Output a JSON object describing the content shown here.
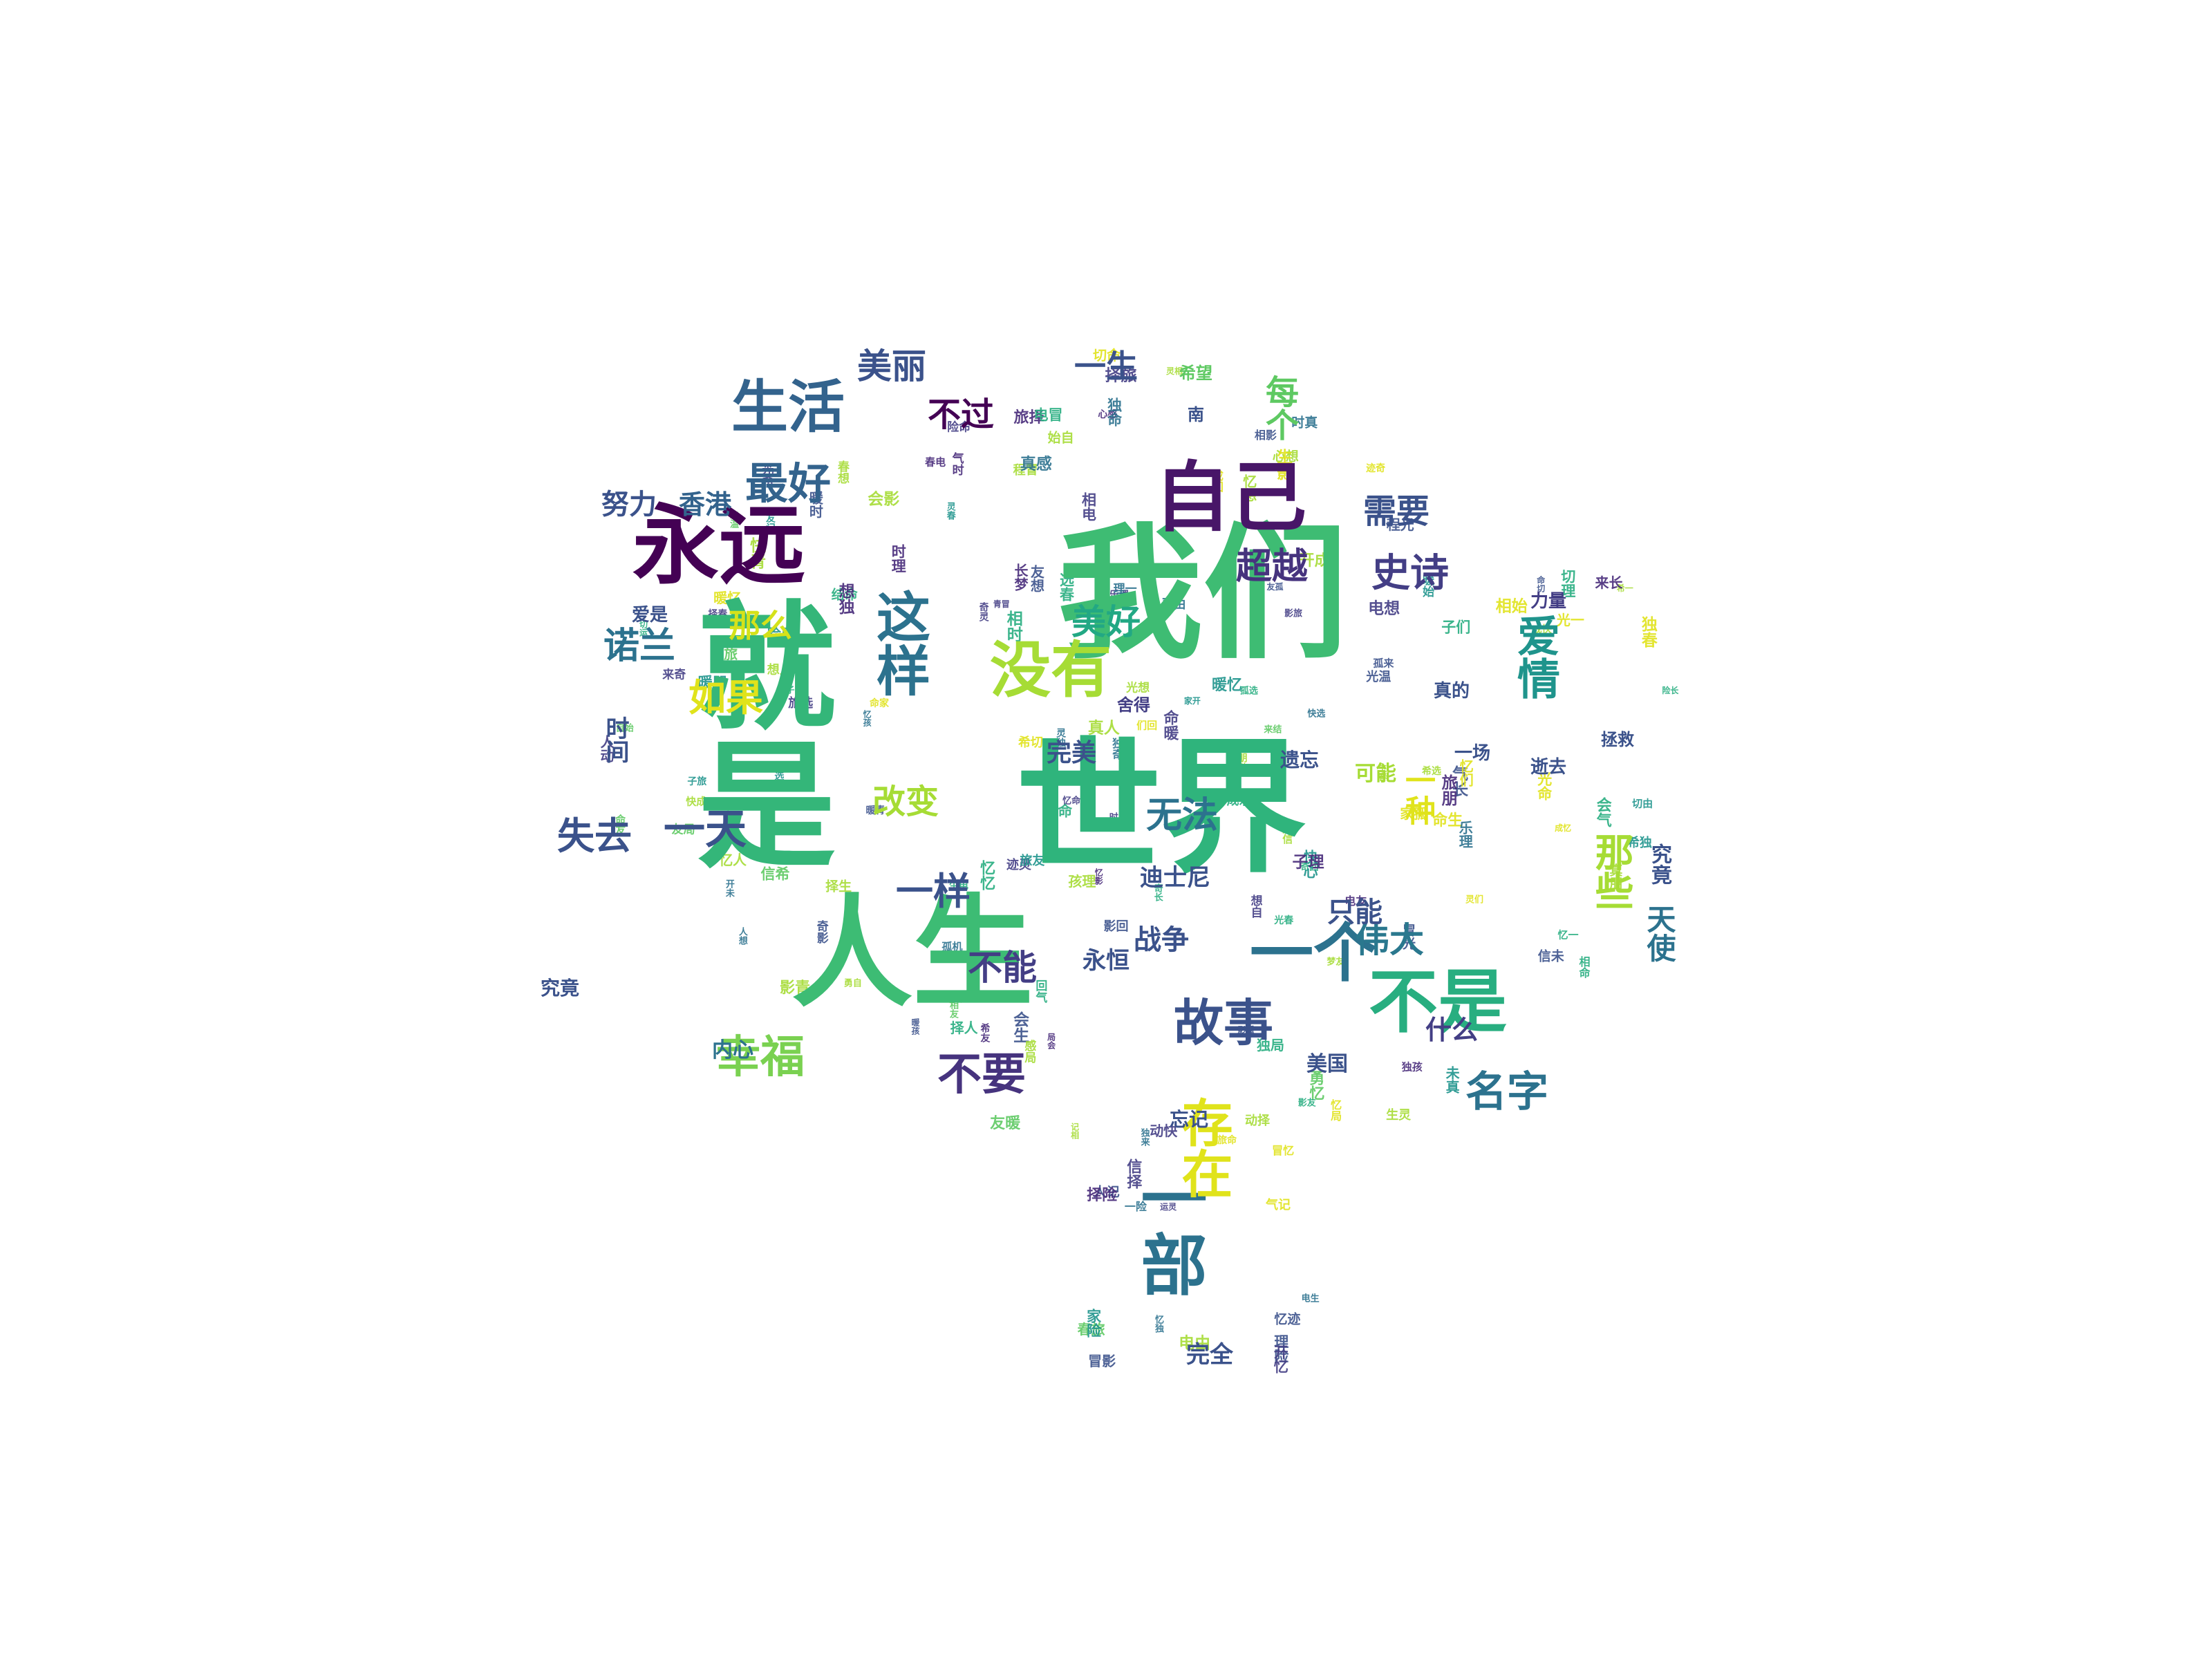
{
  "palette": {
    "lime": "#a6dc35",
    "yellow_green": "#d5e21a",
    "yellow": "#e0e31b",
    "green": "#3ebc73",
    "emerald": "#28ae80",
    "teal": "#1f948c",
    "blue_teal": "#26828e",
    "steel": "#2c728e",
    "slate": "#33638d",
    "indigo": "#3b528b",
    "violet": "#433e85",
    "purple": "#472a79",
    "deep_purple": "#440154"
  },
  "words": [
    {
      "text": "我们",
      "size": 210,
      "color": "#3ebc73",
      "orientation": "horizontal"
    },
    {
      "text": "世界",
      "size": 210,
      "color": "#2fb47c",
      "orientation": "horizontal"
    },
    {
      "text": "人生",
      "size": 175,
      "color": "#3dbc74",
      "orientation": "horizontal"
    },
    {
      "text": "就是",
      "size": 200,
      "color": "#34b679",
      "orientation": "vertical"
    },
    {
      "text": "永远",
      "size": 125,
      "color": "#440154",
      "orientation": "horizontal"
    },
    {
      "text": "自己",
      "size": 110,
      "color": "#481668",
      "orientation": "horizontal"
    },
    {
      "text": "生活",
      "size": 82,
      "color": "#33638d",
      "orientation": "horizontal"
    },
    {
      "text": "一个",
      "size": 92,
      "color": "#2c728e",
      "orientation": "horizontal"
    },
    {
      "text": "不是",
      "size": 100,
      "color": "#28ae80",
      "orientation": "horizontal"
    },
    {
      "text": "没有",
      "size": 88,
      "color": "#a6dc35",
      "orientation": "horizontal"
    },
    {
      "text": "这样",
      "size": 78,
      "color": "#2c728e",
      "orientation": "vertical"
    },
    {
      "text": "幸福",
      "size": 64,
      "color": "#7ad151",
      "orientation": "horizontal"
    },
    {
      "text": "故事",
      "size": 72,
      "color": "#3b528b",
      "orientation": "horizontal"
    },
    {
      "text": "爱情",
      "size": 62,
      "color": "#1f948c",
      "orientation": "vertical"
    },
    {
      "text": "美好",
      "size": 50,
      "color": "#22a884",
      "orientation": "horizontal"
    },
    {
      "text": "无法",
      "size": 52,
      "color": "#2c728e",
      "orientation": "horizontal"
    },
    {
      "text": "伟大",
      "size": 50,
      "color": "#2a788e",
      "orientation": "horizontal"
    },
    {
      "text": "名字",
      "size": 60,
      "color": "#2c728e",
      "orientation": "horizontal"
    },
    {
      "text": "超越",
      "size": 52,
      "color": "#46337e",
      "orientation": "horizontal"
    },
    {
      "text": "史诗",
      "size": 56,
      "color": "#433e85",
      "orientation": "horizontal"
    },
    {
      "text": "需要",
      "size": 48,
      "color": "#3b528b",
      "orientation": "horizontal"
    },
    {
      "text": "一天",
      "size": 60,
      "color": "#3b528b",
      "orientation": "horizontal"
    },
    {
      "text": "最好",
      "size": 62,
      "color": "#33638d",
      "orientation": "horizontal"
    },
    {
      "text": "每个",
      "size": 48,
      "color": "#5ec962",
      "orientation": "vertical"
    },
    {
      "text": "一生",
      "size": 46,
      "color": "#3b528b",
      "orientation": "horizontal"
    },
    {
      "text": "美丽",
      "size": 50,
      "color": "#3b528b",
      "orientation": "horizontal"
    },
    {
      "text": "不过",
      "size": 48,
      "color": "#440154",
      "orientation": "horizontal"
    },
    {
      "text": "诺兰",
      "size": 52,
      "color": "#2c728e",
      "orientation": "horizontal"
    },
    {
      "text": "失去",
      "size": 54,
      "color": "#3b528b",
      "orientation": "horizontal"
    },
    {
      "text": "那么",
      "size": 46,
      "color": "#d5e21a",
      "orientation": "horizontal"
    },
    {
      "text": "如果",
      "size": 54,
      "color": "#e0e31b",
      "orientation": "horizontal"
    },
    {
      "text": "改变",
      "size": 48,
      "color": "#a6dc35",
      "orientation": "horizontal"
    },
    {
      "text": "一样",
      "size": 54,
      "color": "#3b528b",
      "orientation": "horizontal"
    },
    {
      "text": "不能",
      "size": 50,
      "color": "#433e85",
      "orientation": "horizontal"
    },
    {
      "text": "不要",
      "size": 64,
      "color": "#46337e",
      "orientation": "horizontal"
    },
    {
      "text": "那些",
      "size": 56,
      "color": "#a6dc35",
      "orientation": "vertical"
    },
    {
      "text": "天使",
      "size": 42,
      "color": "#2c728e",
      "orientation": "vertical"
    },
    {
      "text": "努力",
      "size": 40,
      "color": "#3b528b",
      "orientation": "horizontal"
    },
    {
      "text": "香港",
      "size": 38,
      "color": "#33638d",
      "orientation": "horizontal"
    },
    {
      "text": "战争",
      "size": 40,
      "color": "#3b528b",
      "orientation": "horizontal"
    },
    {
      "text": "永恒",
      "size": 34,
      "color": "#3b528b",
      "orientation": "horizontal"
    },
    {
      "text": "一部",
      "size": 96,
      "color": "#2c728e",
      "orientation": "vertical"
    },
    {
      "text": "存在",
      "size": 74,
      "color": "#e0e31b",
      "orientation": "vertical"
    },
    {
      "text": "只能",
      "size": 40,
      "color": "#3b528b",
      "orientation": "horizontal"
    },
    {
      "text": "完美",
      "size": 36,
      "color": "#3b528b",
      "orientation": "horizontal"
    },
    {
      "text": "什么",
      "size": 38,
      "color": "#433e85",
      "orientation": "horizontal"
    },
    {
      "text": "迪士尼",
      "size": 34,
      "color": "#3b528b",
      "orientation": "horizontal"
    },
    {
      "text": "完全",
      "size": 34,
      "color": "#3b528b",
      "orientation": "horizontal"
    },
    {
      "text": "可能",
      "size": 30,
      "color": "#a6dc35",
      "orientation": "horizontal"
    },
    {
      "text": "内心",
      "size": 30,
      "color": "#2c728e",
      "orientation": "horizontal"
    },
    {
      "text": "时间",
      "size": 34,
      "color": "#3b528b",
      "orientation": "vertical"
    },
    {
      "text": "一种",
      "size": 44,
      "color": "#e0e31b",
      "orientation": "vertical"
    },
    {
      "text": "真的",
      "size": 26,
      "color": "#3b528b",
      "orientation": "horizontal"
    },
    {
      "text": "一场",
      "size": 26,
      "color": "#3b528b",
      "orientation": "horizontal"
    },
    {
      "text": "力量",
      "size": 26,
      "color": "#433e85",
      "orientation": "horizontal"
    },
    {
      "text": "爱是",
      "size": 26,
      "color": "#3b528b",
      "orientation": "horizontal"
    },
    {
      "text": "美国",
      "size": 30,
      "color": "#3b528b",
      "orientation": "horizontal"
    },
    {
      "text": "遗忘",
      "size": 28,
      "color": "#3b528b",
      "orientation": "horizontal"
    },
    {
      "text": "忘记",
      "size": 28,
      "color": "#3b528b",
      "orientation": "horizontal"
    },
    {
      "text": "希望",
      "size": 24,
      "color": "#5ec962",
      "orientation": "horizontal"
    },
    {
      "text": "南",
      "size": 24,
      "color": "#3b528b",
      "orientation": "horizontal"
    },
    {
      "text": "拯救",
      "size": 24,
      "color": "#3b528b",
      "orientation": "horizontal"
    },
    {
      "text": "逝去",
      "size": 26,
      "color": "#3b528b",
      "orientation": "horizontal"
    },
    {
      "text": "究竟",
      "size": 28,
      "color": "#3b528b",
      "orientation": "horizontal"
    },
    {
      "text": "舍得",
      "size": 24,
      "color": "#433e85",
      "orientation": "horizontal"
    },
    {
      "text": "究竟",
      "size": 30,
      "color": "#3b528b",
      "orientation": "vertical"
    }
  ],
  "filler_glyphs": [
    "时",
    "光",
    "梦",
    "想",
    "记",
    "忆",
    "电",
    "影",
    "心",
    "灵",
    "一",
    "切",
    "人",
    "们",
    "生",
    "命",
    "回",
    "忆",
    "未",
    "来",
    "青",
    "春",
    "孤",
    "独",
    "成",
    "长",
    "相",
    "信",
    "勇",
    "气",
    "自",
    "由",
    "温",
    "暖",
    "快",
    "乐",
    "选",
    "择",
    "真",
    "相",
    "奇",
    "迹",
    "感",
    "动",
    "理",
    "想",
    "旅",
    "程",
    "家",
    "人",
    "朋",
    "友",
    "希",
    "望",
    "命",
    "运",
    "机",
    "会",
    "孩",
    "子",
    "冒",
    "险",
    "结",
    "局",
    "开",
    "始"
  ]
}
